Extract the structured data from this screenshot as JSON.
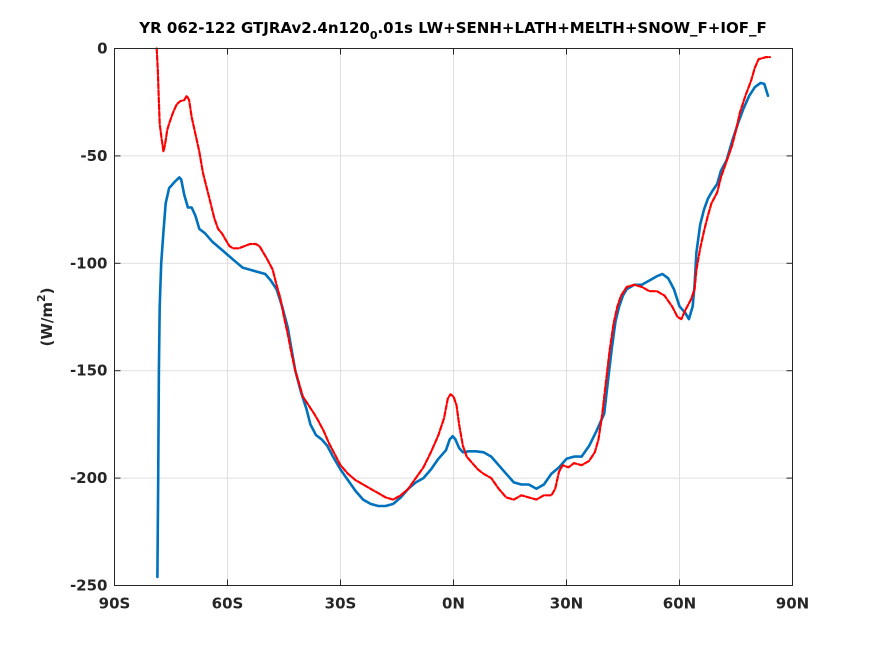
{
  "chart_data": {
    "type": "line",
    "title": {
      "before_subscript": "YR 062-122 GTJRAv2.4n120",
      "subscript": "0",
      "after_subscript": ".01s LW+SENH+LATH+MELTH+SNOW_F+IOF_F"
    },
    "ylabel": {
      "text": "(W/m",
      "superscript": "2",
      "close": ")"
    },
    "xlim": [
      -90,
      90
    ],
    "ylim": [
      -250,
      0
    ],
    "xticks": [
      {
        "value": -90,
        "label": "90S"
      },
      {
        "value": -60,
        "label": "60S"
      },
      {
        "value": -30,
        "label": "30S"
      },
      {
        "value": 0,
        "label": "0N"
      },
      {
        "value": 30,
        "label": "30N"
      },
      {
        "value": 60,
        "label": "60N"
      },
      {
        "value": 90,
        "label": "90N"
      }
    ],
    "yticks": [
      {
        "value": 0,
        "label": "0"
      },
      {
        "value": -50,
        "label": "-50"
      },
      {
        "value": -100,
        "label": "-100"
      },
      {
        "value": -150,
        "label": "-150"
      },
      {
        "value": -200,
        "label": "-200"
      },
      {
        "value": -250,
        "label": "-250"
      }
    ],
    "grid": true,
    "series": [
      {
        "color": "#0072BD",
        "style": "solid",
        "points": [
          [
            -78.6,
            -246
          ],
          [
            -78.4,
            -200
          ],
          [
            -78.2,
            -150
          ],
          [
            -78.0,
            -120
          ],
          [
            -77.6,
            -100
          ],
          [
            -77.0,
            -85
          ],
          [
            -76.4,
            -72
          ],
          [
            -75.5,
            -65
          ],
          [
            -74.0,
            -62
          ],
          [
            -72.8,
            -60
          ],
          [
            -72.3,
            -61
          ],
          [
            -71.5,
            -68
          ],
          [
            -70.5,
            -74
          ],
          [
            -69.5,
            -74
          ],
          [
            -68.5,
            -78
          ],
          [
            -67.5,
            -84
          ],
          [
            -66.0,
            -86
          ],
          [
            -64.0,
            -90
          ],
          [
            -62.0,
            -93
          ],
          [
            -60.0,
            -96
          ],
          [
            -58.0,
            -99
          ],
          [
            -56.0,
            -102
          ],
          [
            -54.0,
            -103
          ],
          [
            -52.0,
            -104
          ],
          [
            -50.0,
            -105
          ],
          [
            -48.5,
            -108
          ],
          [
            -47.0,
            -112
          ],
          [
            -45.5,
            -120
          ],
          [
            -44.0,
            -130
          ],
          [
            -43.0,
            -140
          ],
          [
            -42.0,
            -150
          ],
          [
            -40.5,
            -160
          ],
          [
            -39.0,
            -168
          ],
          [
            -38.0,
            -175
          ],
          [
            -36.5,
            -180
          ],
          [
            -35.0,
            -182
          ],
          [
            -33.5,
            -185
          ],
          [
            -32.0,
            -190
          ],
          [
            -30.0,
            -196
          ],
          [
            -28.0,
            -201
          ],
          [
            -26.0,
            -206
          ],
          [
            -24.0,
            -210
          ],
          [
            -22.0,
            -212
          ],
          [
            -20.0,
            -213
          ],
          [
            -18.0,
            -213
          ],
          [
            -16.0,
            -212
          ],
          [
            -14.0,
            -209
          ],
          [
            -12.0,
            -205
          ],
          [
            -10.0,
            -202
          ],
          [
            -8.0,
            -200
          ],
          [
            -6.0,
            -196
          ],
          [
            -4.0,
            -191
          ],
          [
            -2.0,
            -187
          ],
          [
            -1.0,
            -182
          ],
          [
            -0.2,
            -180.5
          ],
          [
            0.5,
            -182
          ],
          [
            1.5,
            -186
          ],
          [
            2.5,
            -188
          ],
          [
            4.0,
            -187.5
          ],
          [
            6.0,
            -187.5
          ],
          [
            8.0,
            -188
          ],
          [
            10.0,
            -190
          ],
          [
            12.0,
            -194
          ],
          [
            14.0,
            -198
          ],
          [
            16.0,
            -202
          ],
          [
            18.0,
            -203
          ],
          [
            20.0,
            -203
          ],
          [
            22.0,
            -205
          ],
          [
            24.0,
            -203
          ],
          [
            26.0,
            -198
          ],
          [
            28.0,
            -195
          ],
          [
            30.0,
            -191
          ],
          [
            32.0,
            -190
          ],
          [
            34.0,
            -190
          ],
          [
            36.0,
            -185
          ],
          [
            38.0,
            -178
          ],
          [
            40.0,
            -170
          ],
          [
            41.0,
            -155
          ],
          [
            42.0,
            -140
          ],
          [
            43.0,
            -127
          ],
          [
            44.0,
            -120
          ],
          [
            45.0,
            -115
          ],
          [
            46.0,
            -112
          ],
          [
            48.0,
            -110
          ],
          [
            50.0,
            -110
          ],
          [
            52.0,
            -108
          ],
          [
            54.0,
            -106
          ],
          [
            55.5,
            -105
          ],
          [
            57.0,
            -107
          ],
          [
            58.5,
            -112
          ],
          [
            60.0,
            -120
          ],
          [
            61.5,
            -123
          ],
          [
            62.5,
            -126
          ],
          [
            63.5,
            -120
          ],
          [
            64.0,
            -110
          ],
          [
            64.5,
            -95
          ],
          [
            65.5,
            -82
          ],
          [
            66.5,
            -75
          ],
          [
            67.5,
            -70
          ],
          [
            68.5,
            -67
          ],
          [
            70.0,
            -63
          ],
          [
            71.0,
            -57
          ],
          [
            72.5,
            -52
          ],
          [
            74.0,
            -43
          ],
          [
            75.5,
            -35
          ],
          [
            77.0,
            -28
          ],
          [
            78.5,
            -22
          ],
          [
            80.0,
            -18
          ],
          [
            81.5,
            -16
          ],
          [
            82.5,
            -16.5
          ],
          [
            83.5,
            -22
          ]
        ]
      },
      {
        "color": "#FF0000",
        "style": "dashed",
        "points": [
          [
            -78.8,
            0
          ],
          [
            -78.5,
            -10
          ],
          [
            -78.2,
            -25
          ],
          [
            -78.0,
            -35
          ],
          [
            -77.5,
            -42
          ],
          [
            -77.0,
            -48
          ],
          [
            -76.5,
            -44
          ],
          [
            -76.0,
            -38
          ],
          [
            -75.5,
            -35
          ],
          [
            -74.5,
            -30
          ],
          [
            -73.5,
            -26
          ],
          [
            -72.5,
            -24.5
          ],
          [
            -71.5,
            -24
          ],
          [
            -70.8,
            -22
          ],
          [
            -70.2,
            -24
          ],
          [
            -69.5,
            -32
          ],
          [
            -68.5,
            -40
          ],
          [
            -67.5,
            -48
          ],
          [
            -66.5,
            -58
          ],
          [
            -65.5,
            -65
          ],
          [
            -64.5,
            -72
          ],
          [
            -63.5,
            -79
          ],
          [
            -62.5,
            -84
          ],
          [
            -61.5,
            -86
          ],
          [
            -60.5,
            -89
          ],
          [
            -59.5,
            -92
          ],
          [
            -58.5,
            -93
          ],
          [
            -57.0,
            -93
          ],
          [
            -55.5,
            -92
          ],
          [
            -54.0,
            -91
          ],
          [
            -52.5,
            -91
          ],
          [
            -51.5,
            -92
          ],
          [
            -50.5,
            -95
          ],
          [
            -49.5,
            -98
          ],
          [
            -48.0,
            -103
          ],
          [
            -47.0,
            -110
          ],
          [
            -46.0,
            -116
          ],
          [
            -45.0,
            -125
          ],
          [
            -44.0,
            -133
          ],
          [
            -43.0,
            -142
          ],
          [
            -42.0,
            -150
          ],
          [
            -41.0,
            -156
          ],
          [
            -40.0,
            -162
          ],
          [
            -38.5,
            -166
          ],
          [
            -37.0,
            -170
          ],
          [
            -36.0,
            -173
          ],
          [
            -34.5,
            -178
          ],
          [
            -33.0,
            -184
          ],
          [
            -31.5,
            -189
          ],
          [
            -30.0,
            -194
          ],
          [
            -28.0,
            -198
          ],
          [
            -26.0,
            -201
          ],
          [
            -24.0,
            -203
          ],
          [
            -22.0,
            -205
          ],
          [
            -20.0,
            -207
          ],
          [
            -18.0,
            -209
          ],
          [
            -16.0,
            -210
          ],
          [
            -14.0,
            -208
          ],
          [
            -12.0,
            -205
          ],
          [
            -10.0,
            -200
          ],
          [
            -8.0,
            -195
          ],
          [
            -6.0,
            -188
          ],
          [
            -4.0,
            -180
          ],
          [
            -2.5,
            -172
          ],
          [
            -1.5,
            -163
          ],
          [
            -0.8,
            -161
          ],
          [
            0.0,
            -162
          ],
          [
            0.8,
            -166
          ],
          [
            1.5,
            -175
          ],
          [
            2.5,
            -185
          ],
          [
            3.5,
            -190
          ],
          [
            5.0,
            -193
          ],
          [
            6.5,
            -196
          ],
          [
            8.0,
            -198
          ],
          [
            10.0,
            -200
          ],
          [
            12.0,
            -205
          ],
          [
            14.0,
            -209
          ],
          [
            16.0,
            -210
          ],
          [
            18.0,
            -208
          ],
          [
            20.0,
            -209
          ],
          [
            22.0,
            -210
          ],
          [
            24.0,
            -208
          ],
          [
            26.0,
            -208
          ],
          [
            27.0,
            -205
          ],
          [
            28.0,
            -197
          ],
          [
            29.0,
            -194
          ],
          [
            30.5,
            -195
          ],
          [
            32.0,
            -193
          ],
          [
            34.0,
            -194
          ],
          [
            36.0,
            -192
          ],
          [
            37.5,
            -188
          ],
          [
            38.5,
            -182
          ],
          [
            39.5,
            -170
          ],
          [
            40.5,
            -155
          ],
          [
            41.5,
            -140
          ],
          [
            42.5,
            -128
          ],
          [
            43.5,
            -120
          ],
          [
            44.5,
            -115
          ],
          [
            46.0,
            -111
          ],
          [
            48.0,
            -110
          ],
          [
            50.0,
            -111
          ],
          [
            52.0,
            -113
          ],
          [
            54.0,
            -113
          ],
          [
            56.0,
            -115
          ],
          [
            58.0,
            -120
          ],
          [
            59.5,
            -125
          ],
          [
            60.5,
            -126
          ],
          [
            61.5,
            -122
          ],
          [
            63.0,
            -117
          ],
          [
            64.0,
            -112
          ],
          [
            64.5,
            -103
          ],
          [
            65.5,
            -93
          ],
          [
            66.5,
            -85
          ],
          [
            67.5,
            -78
          ],
          [
            68.5,
            -72
          ],
          [
            70.0,
            -67
          ],
          [
            71.0,
            -60
          ],
          [
            72.0,
            -55
          ],
          [
            73.0,
            -50
          ],
          [
            74.0,
            -45
          ],
          [
            75.0,
            -38
          ],
          [
            76.0,
            -30
          ],
          [
            77.5,
            -22
          ],
          [
            79.0,
            -15
          ],
          [
            80.0,
            -9
          ],
          [
            81.0,
            -5
          ],
          [
            83.0,
            -4
          ],
          [
            84.0,
            -4
          ]
        ]
      }
    ]
  }
}
